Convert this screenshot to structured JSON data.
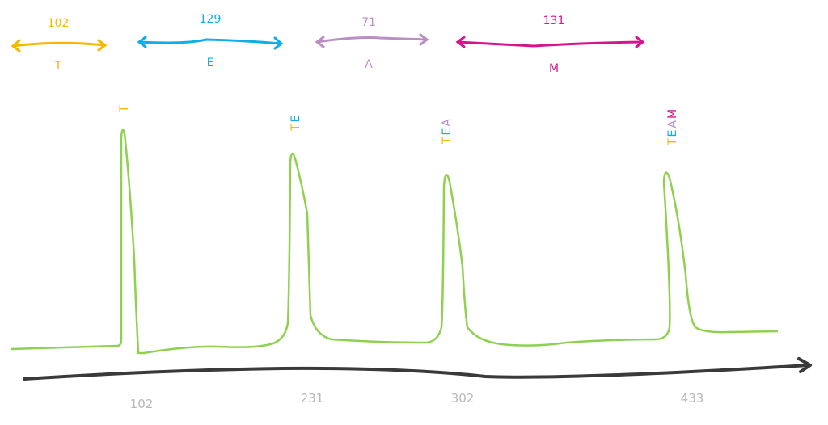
{
  "colors": {
    "T": "#f5b800",
    "E": "#10aee8",
    "A": "#b98fc6",
    "M": "#d6148c",
    "signal": "#8fd14f",
    "axis": "#3a3a3a",
    "tick": "#b8b8b8"
  },
  "segments": [
    {
      "letter": "T",
      "duration": "102"
    },
    {
      "letter": "E",
      "duration": "129"
    },
    {
      "letter": "A",
      "duration": "71"
    },
    {
      "letter": "M",
      "duration": "131"
    }
  ],
  "peaks": [
    {
      "letters": [
        "T"
      ]
    },
    {
      "letters": [
        "T",
        "E"
      ]
    },
    {
      "letters": [
        "T",
        "E",
        "A"
      ]
    },
    {
      "letters": [
        "T",
        "E",
        "A",
        "M"
      ]
    }
  ],
  "axis_ticks": [
    "102",
    "231",
    "302",
    "433"
  ]
}
